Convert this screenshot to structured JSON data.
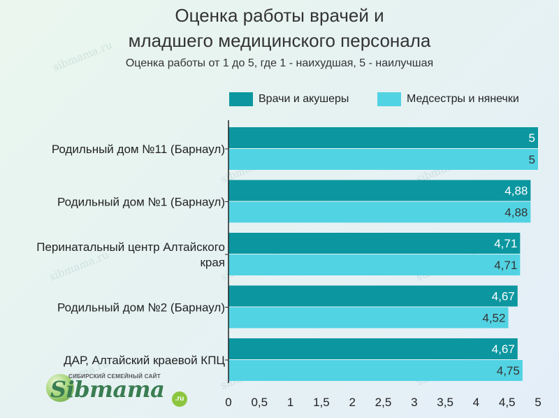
{
  "chart_data": {
    "type": "bar",
    "orientation": "horizontal",
    "title": "Оценка работы врачей и младшего медицинского персонала",
    "title_lines": [
      "Оценка работы врачей и",
      "младшего медицинского персонала"
    ],
    "subtitle": "Оценка работы от 1 до 5, где 1 - наихудшая, 5 - наилучшая",
    "categories": [
      "Родильный дом №11 (Барнаул)",
      "Родильный дом №1 (Барнаул)",
      "Перинатальный центр Алтайского края",
      "Родильный дом №2 (Барнаул)",
      "ДАР, Алтайский краевой КПЦ"
    ],
    "category_lines": [
      [
        "Родильный дом №11 (Барнаул)"
      ],
      [
        "Родильный дом №1 (Барнаул)"
      ],
      [
        "Перинатальный центр Алтайского",
        "края"
      ],
      [
        "Родильный дом №2 (Барнаул)"
      ],
      [
        "ДАР, Алтайский краевой КПЦ"
      ]
    ],
    "series": [
      {
        "name": "Врачи и акушеры",
        "color": "#0c97a0",
        "values": [
          5,
          4.88,
          4.71,
          4.67,
          4.67
        ],
        "labels": [
          "5",
          "4,88",
          "4,71",
          "4,67",
          "4,67"
        ]
      },
      {
        "name": "Медсестры и нянечки",
        "color": "#52d3e3",
        "values": [
          5,
          4.88,
          4.71,
          4.52,
          4.75
        ],
        "labels": [
          "5",
          "4,88",
          "4,71",
          "4,52",
          "4,75"
        ]
      }
    ],
    "xlim": [
      0,
      5
    ],
    "xticks": [
      0,
      0.5,
      1,
      1.5,
      2,
      2.5,
      3,
      3.5,
      4,
      4.5,
      5
    ],
    "xtick_labels": [
      "0",
      "0,5",
      "1",
      "1,5",
      "2",
      "2,5",
      "3",
      "3,5",
      "4",
      "4,5",
      "5"
    ],
    "legend_position": "top-right",
    "grid": false
  },
  "watermark": "sibmama.ru",
  "logo": {
    "tagline": "СИБИРСКИЙ СЕМЕЙНЫЙ САЙТ",
    "wordmark": "Sibmama",
    "suffix": ".ru"
  }
}
